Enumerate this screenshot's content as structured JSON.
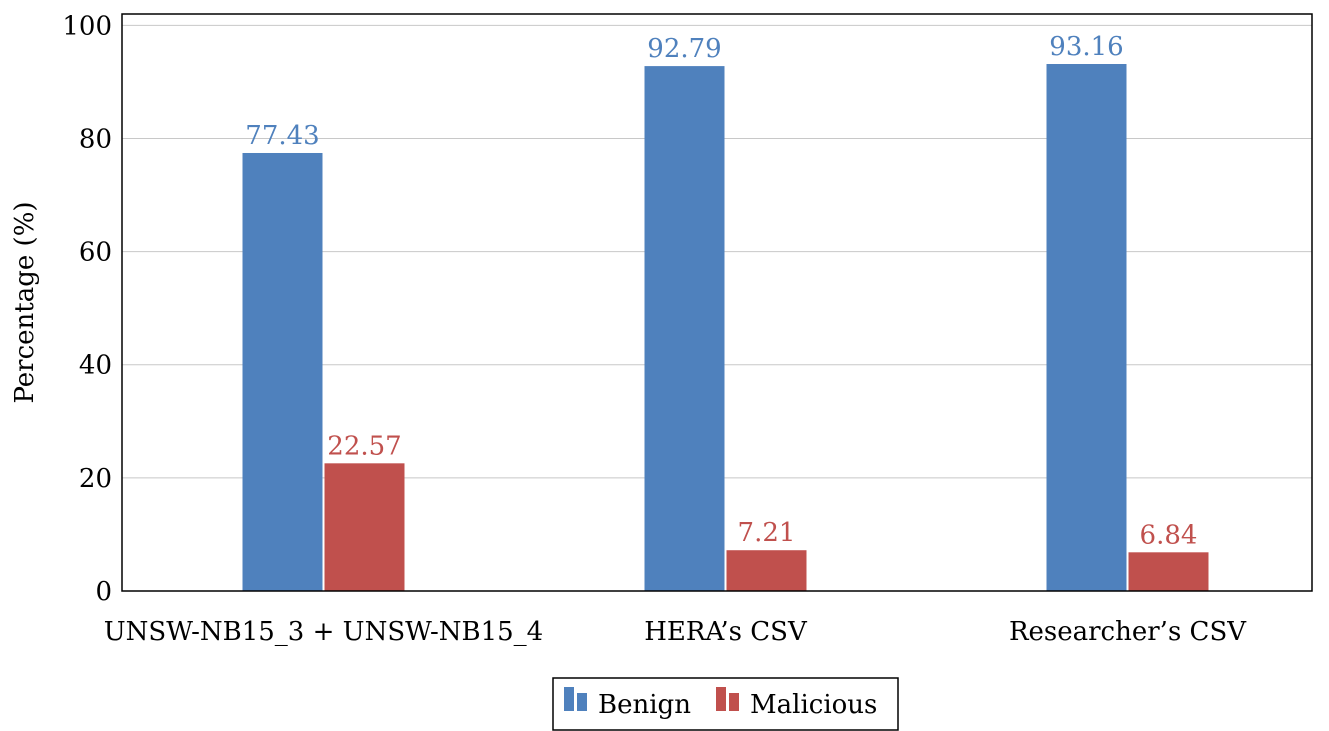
{
  "chart_data": {
    "type": "bar",
    "categories": [
      "UNSW-NB15_3 + UNSW-NB15_4",
      "HERA’s CSV",
      "Researcher’s CSV"
    ],
    "series": [
      {
        "name": "Benign",
        "values": [
          77.43,
          92.79,
          93.16
        ],
        "color": "#4f81bd"
      },
      {
        "name": "Malicious",
        "values": [
          22.57,
          7.21,
          6.84
        ],
        "color": "#c0504d"
      }
    ],
    "data_labels": [
      [
        "77.43",
        "92.79",
        "93.16"
      ],
      [
        "22.57",
        "7.21",
        "6.84"
      ]
    ],
    "ylabel": "Percentage (%)",
    "xlabel": "",
    "ylim": [
      0,
      102
    ],
    "yticks": [
      0,
      20,
      40,
      60,
      80,
      100
    ],
    "grid": "horizontal",
    "legend_position": "bottom-center"
  }
}
